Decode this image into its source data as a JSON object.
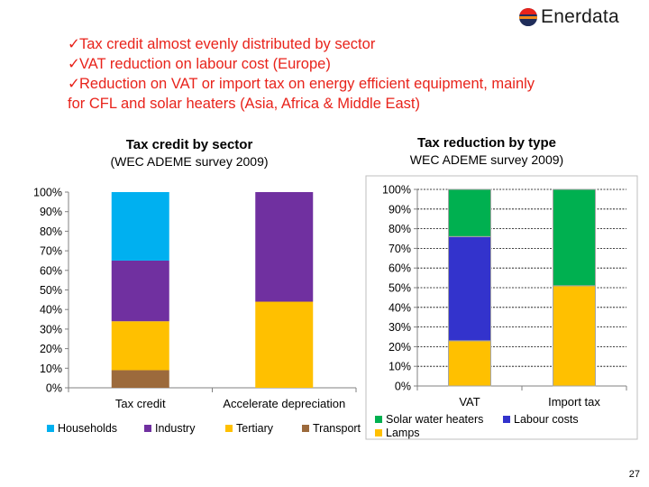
{
  "logo": {
    "brand_name": "Enerdata"
  },
  "bullets": [
    {
      "check": "✓",
      "text": "Tax credit almost evenly distributed by sector"
    },
    {
      "check": "✓",
      "text": "VAT reduction on  labour cost (Europe)"
    },
    {
      "check": "✓",
      "text": "Reduction on VAT or import tax on energy efficient equipment, mainly"
    },
    {
      "check": "",
      "text": "for CFL and solar heaters (Asia, Africa & Middle East)"
    }
  ],
  "colors": {
    "bullet_text": "#e8231b",
    "households": "#00b0f0",
    "industry": "#7030a0",
    "tertiary": "#ffc000",
    "transport": "#9c6a3c",
    "solar_water_heaters": "#00b050",
    "labour_costs": "#3333cc",
    "lamps": "#ffc000"
  },
  "chart_data": [
    {
      "type": "bar",
      "stacked": true,
      "title": "Tax credit by sector",
      "subtitle": "(WEC ADEME survey 2009)",
      "categories": [
        "Tax credit",
        "Accelerate depreciation"
      ],
      "series": [
        {
          "name": "Transport",
          "color": "#9c6a3c",
          "values": [
            9,
            0
          ]
        },
        {
          "name": "Tertiary",
          "color": "#ffc000",
          "values": [
            25,
            44
          ]
        },
        {
          "name": "Industry",
          "color": "#7030a0",
          "values": [
            31,
            56
          ]
        },
        {
          "name": "Households",
          "color": "#00b0f0",
          "values": [
            35,
            0
          ]
        }
      ],
      "legend_order": [
        "Households",
        "Industry",
        "Tertiary",
        "Transport"
      ],
      "ylim": [
        0,
        100
      ],
      "yticks": [
        "0%",
        "10%",
        "20%",
        "30%",
        "40%",
        "50%",
        "60%",
        "70%",
        "80%",
        "90%",
        "100%"
      ],
      "grid": false,
      "legend": "bottom"
    },
    {
      "type": "bar",
      "stacked": true,
      "title": "Tax reduction by type",
      "subtitle": "WEC ADEME survey 2009)",
      "categories": [
        "VAT",
        "Import tax"
      ],
      "series": [
        {
          "name": "Lamps",
          "color": "#ffc000",
          "values": [
            23,
            51
          ]
        },
        {
          "name": "Labour costs",
          "color": "#3333cc",
          "values": [
            53,
            0
          ]
        },
        {
          "name": "Solar water heaters",
          "color": "#00b050",
          "values": [
            24,
            49
          ]
        }
      ],
      "legend_order": [
        "Solar water heaters",
        "Labour costs",
        "Lamps"
      ],
      "ylim": [
        0,
        100
      ],
      "yticks": [
        "0%",
        "10%",
        "20%",
        "30%",
        "40%",
        "50%",
        "60%",
        "70%",
        "80%",
        "90%",
        "100%"
      ],
      "grid": true,
      "legend": "bottom"
    }
  ],
  "page_number": "27"
}
